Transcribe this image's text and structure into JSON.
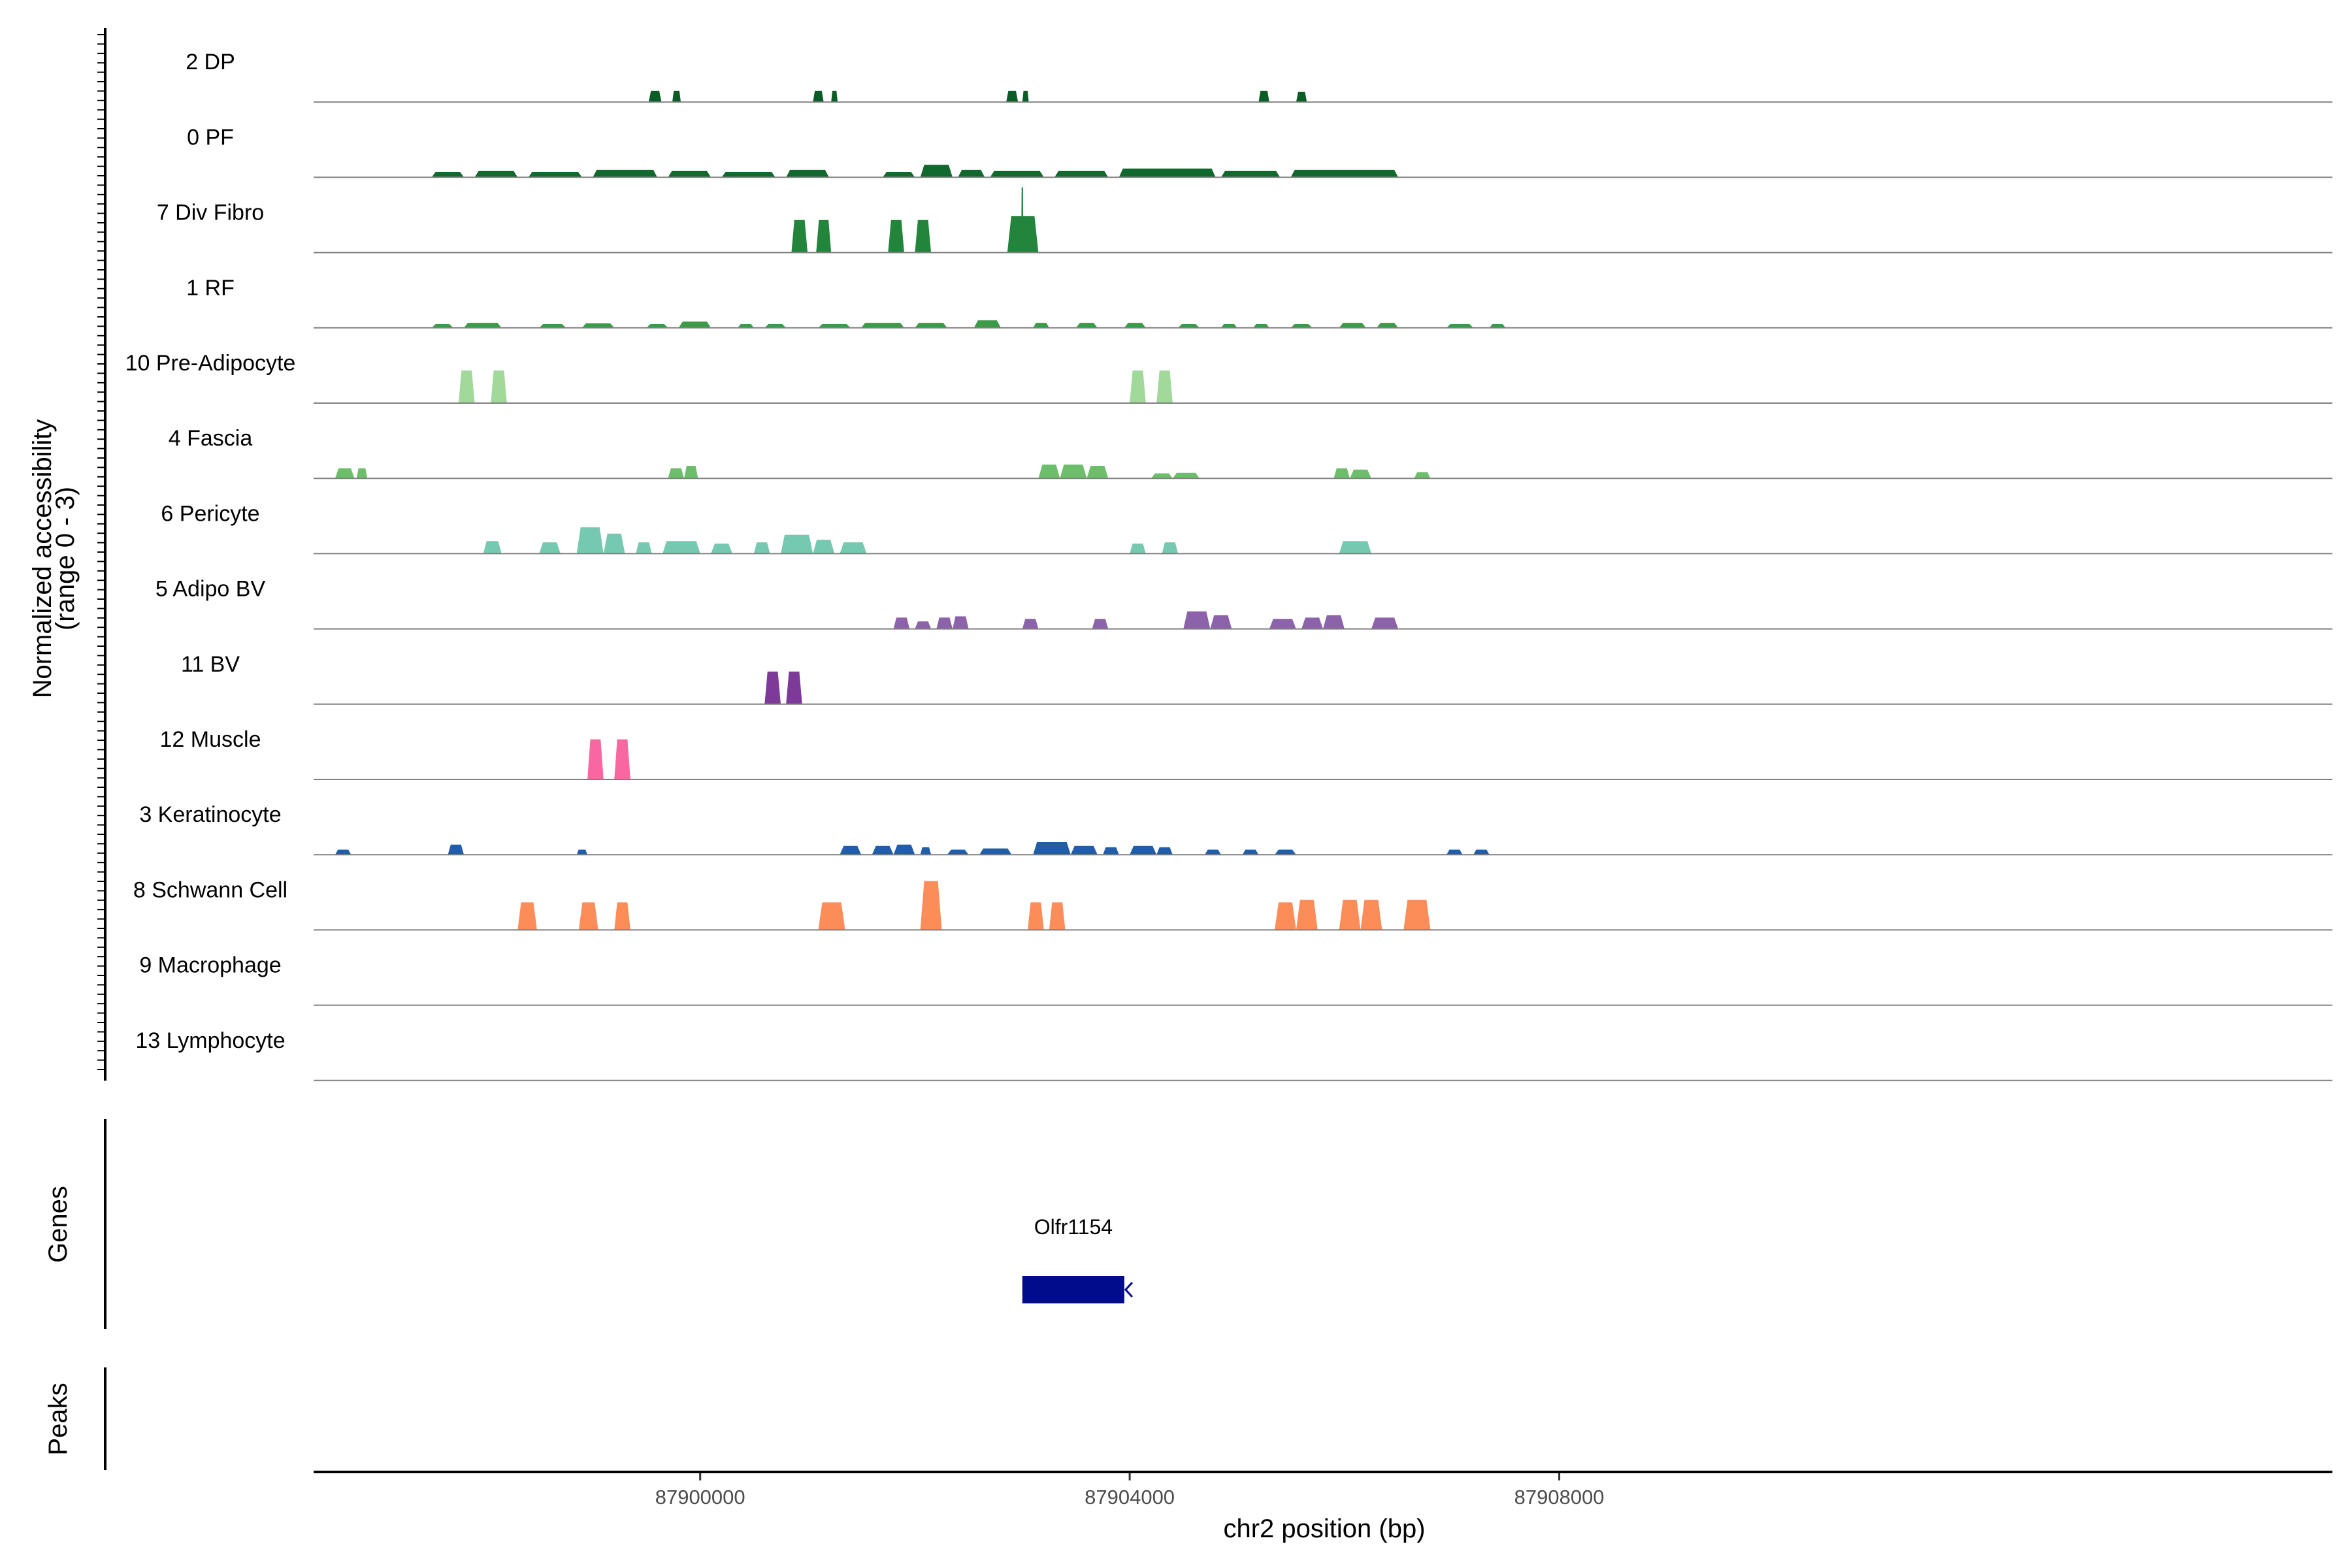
{
  "chart_data": {
    "type": "area",
    "title": "",
    "ylabel": [
      "Normalized accessibility",
      "(range 0 - 3)"
    ],
    "ylim": [
      0,
      3
    ],
    "xlabel": "chr2 position (bp)",
    "xlim": [
      87896400,
      87915200
    ],
    "xticks": [
      {
        "value": 87900000,
        "label": "87900000"
      },
      {
        "value": 87904000,
        "label": "87904000"
      },
      {
        "value": 87908000,
        "label": "87908000"
      }
    ],
    "tracks": [
      {
        "name": "2 DP",
        "color": "#0b5d28",
        "peaks": [
          [
            87899520,
            87899640,
            0.45
          ],
          [
            87899740,
            87899820,
            0.45
          ],
          [
            87901050,
            87901150,
            0.45
          ],
          [
            87901220,
            87901280,
            0.45
          ],
          [
            87902850,
            87902960,
            0.45
          ],
          [
            87903000,
            87903060,
            0.45
          ],
          [
            87905200,
            87905300,
            0.45
          ],
          [
            87905550,
            87905650,
            0.4
          ]
        ]
      },
      {
        "name": "0 PF",
        "color": "#11692d",
        "peaks": [
          [
            87897500,
            87897800,
            0.22
          ],
          [
            87897900,
            87898300,
            0.25
          ],
          [
            87898400,
            87898900,
            0.22
          ],
          [
            87899000,
            87899600,
            0.3
          ],
          [
            87899700,
            87900100,
            0.25
          ],
          [
            87900200,
            87900700,
            0.22
          ],
          [
            87900800,
            87901200,
            0.3
          ],
          [
            87901700,
            87902000,
            0.22
          ],
          [
            87902050,
            87902350,
            0.5
          ],
          [
            87902400,
            87902650,
            0.3
          ],
          [
            87902700,
            87903200,
            0.25
          ],
          [
            87903300,
            87903800,
            0.25
          ],
          [
            87903900,
            87904800,
            0.35
          ],
          [
            87904850,
            87905400,
            0.25
          ],
          [
            87905500,
            87906500,
            0.3
          ]
        ]
      },
      {
        "name": "7 Div Fibro",
        "color": "#23843c",
        "peaks": [
          [
            87900850,
            87901000,
            1.3
          ],
          [
            87901080,
            87901220,
            1.3
          ],
          [
            87901750,
            87901900,
            1.3
          ],
          [
            87902000,
            87902150,
            1.3
          ],
          [
            87902860,
            87903150,
            1.45
          ],
          [
            87902990,
            87903010,
            2.6
          ]
        ]
      },
      {
        "name": "1 RF",
        "color": "#3b9b47",
        "peaks": [
          [
            87897500,
            87897700,
            0.15
          ],
          [
            87897800,
            87898150,
            0.2
          ],
          [
            87898500,
            87898750,
            0.15
          ],
          [
            87898900,
            87899200,
            0.18
          ],
          [
            87899500,
            87899700,
            0.15
          ],
          [
            87899800,
            87900100,
            0.25
          ],
          [
            87900350,
            87900500,
            0.15
          ],
          [
            87900600,
            87900800,
            0.15
          ],
          [
            87901100,
            87901400,
            0.15
          ],
          [
            87901500,
            87901900,
            0.2
          ],
          [
            87902000,
            87902300,
            0.2
          ],
          [
            87902550,
            87902800,
            0.3
          ],
          [
            87903100,
            87903250,
            0.2
          ],
          [
            87903500,
            87903700,
            0.2
          ],
          [
            87903950,
            87904150,
            0.2
          ],
          [
            87904450,
            87904650,
            0.15
          ],
          [
            87904850,
            87905000,
            0.15
          ],
          [
            87905150,
            87905300,
            0.15
          ],
          [
            87905500,
            87905700,
            0.15
          ],
          [
            87905950,
            87906200,
            0.2
          ],
          [
            87906300,
            87906500,
            0.2
          ],
          [
            87906950,
            87907200,
            0.15
          ],
          [
            87907350,
            87907500,
            0.15
          ]
        ]
      },
      {
        "name": "10 Pre-Adipocyte",
        "color": "#a1d99b",
        "peaks": [
          [
            87897750,
            87897900,
            1.3
          ],
          [
            87898050,
            87898200,
            1.3
          ],
          [
            87904000,
            87904150,
            1.3
          ],
          [
            87904250,
            87904400,
            1.3
          ]
        ]
      },
      {
        "name": "4 Fascia",
        "color": "#6dbe6a",
        "peaks": [
          [
            87896600,
            87896780,
            0.4
          ],
          [
            87896800,
            87896900,
            0.4
          ],
          [
            87899700,
            87899850,
            0.4
          ],
          [
            87899850,
            87899980,
            0.5
          ],
          [
            87903150,
            87903350,
            0.55
          ],
          [
            87903350,
            87903600,
            0.55
          ],
          [
            87903600,
            87903800,
            0.5
          ],
          [
            87904200,
            87904400,
            0.2
          ],
          [
            87904400,
            87904650,
            0.22
          ],
          [
            87905900,
            87906050,
            0.4
          ],
          [
            87906050,
            87906250,
            0.35
          ],
          [
            87906650,
            87906800,
            0.25
          ]
        ]
      },
      {
        "name": "6 Pericyte",
        "color": "#75c9b0",
        "peaks": [
          [
            87897980,
            87898150,
            0.5
          ],
          [
            87898500,
            87898700,
            0.45
          ],
          [
            87898850,
            87899100,
            1.05
          ],
          [
            87899100,
            87899300,
            0.8
          ],
          [
            87899400,
            87899550,
            0.45
          ],
          [
            87899650,
            87900000,
            0.5
          ],
          [
            87900100,
            87900300,
            0.4
          ],
          [
            87900500,
            87900650,
            0.45
          ],
          [
            87900750,
            87901050,
            0.75
          ],
          [
            87901050,
            87901250,
            0.55
          ],
          [
            87901300,
            87901550,
            0.45
          ],
          [
            87904000,
            87904150,
            0.4
          ],
          [
            87904300,
            87904450,
            0.45
          ],
          [
            87905950,
            87906250,
            0.5
          ]
        ]
      },
      {
        "name": "5 Adipo BV",
        "color": "#8c63aa",
        "peaks": [
          [
            87901800,
            87901950,
            0.45
          ],
          [
            87902000,
            87902150,
            0.3
          ],
          [
            87902200,
            87902350,
            0.45
          ],
          [
            87902350,
            87902500,
            0.5
          ],
          [
            87903000,
            87903150,
            0.4
          ],
          [
            87903650,
            87903800,
            0.4
          ],
          [
            87904500,
            87904750,
            0.7
          ],
          [
            87904750,
            87904950,
            0.55
          ],
          [
            87905300,
            87905550,
            0.4
          ],
          [
            87905600,
            87905800,
            0.45
          ],
          [
            87905800,
            87906000,
            0.55
          ],
          [
            87906250,
            87906500,
            0.45
          ]
        ]
      },
      {
        "name": "11 BV",
        "color": "#7d3a99",
        "peaks": [
          [
            87900600,
            87900750,
            1.3
          ],
          [
            87900800,
            87900950,
            1.3
          ]
        ]
      },
      {
        "name": "12 Muscle",
        "color": "#f768a1",
        "peaks": [
          [
            87898950,
            87899100,
            1.6
          ],
          [
            87899200,
            87899350,
            1.6
          ]
        ]
      },
      {
        "name": "3 Keratinocyte",
        "color": "#225ea8",
        "peaks": [
          [
            87896600,
            87896750,
            0.2
          ],
          [
            87897650,
            87897800,
            0.4
          ],
          [
            87898850,
            87898950,
            0.2
          ],
          [
            87901300,
            87901500,
            0.35
          ],
          [
            87901600,
            87901800,
            0.35
          ],
          [
            87901800,
            87902000,
            0.4
          ],
          [
            87902050,
            87902150,
            0.3
          ],
          [
            87902300,
            87902500,
            0.2
          ],
          [
            87902600,
            87902900,
            0.25
          ],
          [
            87903100,
            87903450,
            0.5
          ],
          [
            87903450,
            87903700,
            0.35
          ],
          [
            87903750,
            87903900,
            0.3
          ],
          [
            87904000,
            87904250,
            0.35
          ],
          [
            87904250,
            87904400,
            0.3
          ],
          [
            87904700,
            87904850,
            0.2
          ],
          [
            87905050,
            87905200,
            0.2
          ],
          [
            87905350,
            87905550,
            0.2
          ],
          [
            87906950,
            87907100,
            0.2
          ],
          [
            87907200,
            87907350,
            0.2
          ]
        ]
      },
      {
        "name": "8 Schwann Cell",
        "color": "#fc8d59",
        "peaks": [
          [
            87898300,
            87898480,
            1.1
          ],
          [
            87898870,
            87899050,
            1.1
          ],
          [
            87899200,
            87899350,
            1.1
          ],
          [
            87901100,
            87901350,
            1.1
          ],
          [
            87902050,
            87902250,
            1.95
          ],
          [
            87903050,
            87903200,
            1.1
          ],
          [
            87903250,
            87903400,
            1.1
          ],
          [
            87905350,
            87905550,
            1.1
          ],
          [
            87905550,
            87905750,
            1.2
          ],
          [
            87905950,
            87906150,
            1.2
          ],
          [
            87906150,
            87906350,
            1.2
          ],
          [
            87906550,
            87906800,
            1.2
          ]
        ]
      },
      {
        "name": "9 Macrophage",
        "color": "#999999",
        "peaks": []
      },
      {
        "name": "13 Lymphocyte",
        "color": "#999999",
        "peaks": []
      }
    ],
    "genes_label": "Genes",
    "peaks_label": "Peaks",
    "genes": [
      {
        "name": "Olfr1154",
        "start": 87903000,
        "end": 87903950,
        "strand": "-",
        "color": "#000c8b"
      }
    ]
  }
}
